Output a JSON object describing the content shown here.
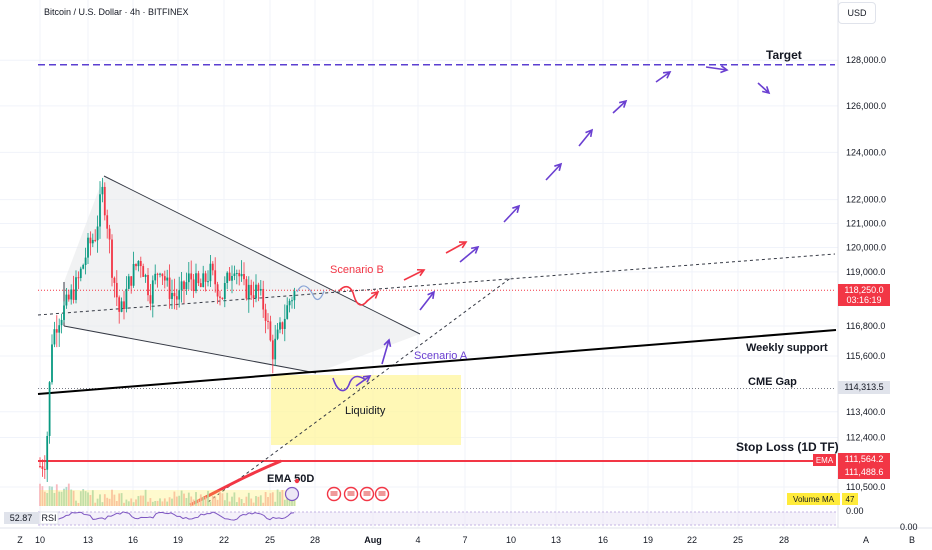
{
  "header": {
    "title": "Bitcoin / U.S. Dollar · 4h · BITFINEX",
    "currency_button": "USD"
  },
  "chart_data": {
    "type": "candlestick",
    "symbol": "Bitcoin / U.S. Dollar",
    "timeframe": "4h",
    "exchange": "BITFINEX",
    "y_axis": {
      "ticks": [
        128000.0,
        126000.0,
        124000.0,
        122000.0,
        121000.0,
        120000.0,
        119000.0,
        116800.0,
        115600.0,
        113400.0,
        112400.0,
        110500.0
      ],
      "tick_labels": [
        "128,000.0",
        "126,000.0",
        "124,000.0",
        "122,000.0",
        "121,000.0",
        "120,000.0",
        "119,000.0",
        "116,800.0",
        "115,600.0",
        "113,400.0",
        "112,400.0",
        "110,500.0"
      ],
      "scale": "log"
    },
    "x_axis": {
      "tick_labels": [
        "10",
        "13",
        "16",
        "19",
        "22",
        "25",
        "28",
        "Aug",
        "4",
        "7",
        "10",
        "13",
        "16",
        "19",
        "22",
        "25",
        "28"
      ]
    },
    "price_labels": [
      {
        "value": "118,250.0",
        "sub": "03:16:19",
        "color": "#f23645"
      },
      {
        "value": "114,313.5",
        "color": "#e0e3eb"
      },
      {
        "value": "111,564.2",
        "color": "#f23645"
      },
      {
        "value": "111,488.6",
        "color": "#f23645"
      }
    ],
    "price_axis_tags": {
      "ema": "EMA",
      "volume_ma": "Volume MA",
      "volume_ma_value": "47"
    },
    "annotations": {
      "target": "Target",
      "scenario_b": "Scenario B",
      "scenario_a": "Scenario A",
      "weekly_support": "Weekly support",
      "cme_gap": "CME Gap",
      "liquidity": "Liquidity",
      "stop_loss": "Stop Loss (1D TF)",
      "ema_50d": "EMA 50D"
    },
    "levels": {
      "target": 127800,
      "current_price": 118250.0,
      "cme_gap": 114313.5,
      "stop_loss": 111564.2
    },
    "rsi": {
      "label": "RSI",
      "value": "52.87",
      "axis_top": "0.00",
      "axis_bottom": "0.00"
    },
    "bottom_labels": {
      "left": "Z",
      "auto": "A",
      "b": "B"
    },
    "colors": {
      "up": "#089981",
      "down": "#f23645",
      "target": "#5b3fd1",
      "scenario_b": "#f23645",
      "scenario_a": "#6a3fd1",
      "liquidity": "#fff59d",
      "support": "#000000",
      "stop": "#f23645",
      "grid": "#f0f3fa",
      "volume_ma": "#ffeb3b"
    }
  }
}
